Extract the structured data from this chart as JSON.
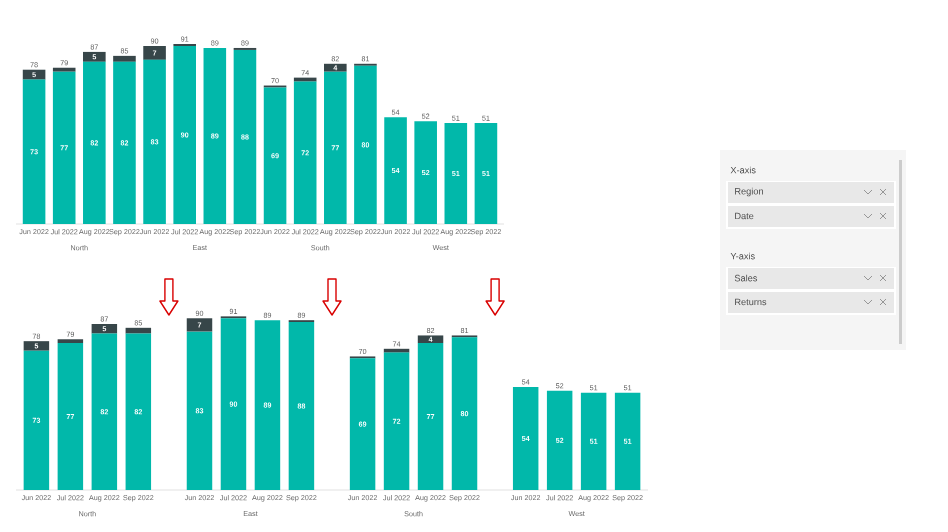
{
  "chart_data": [
    {
      "type": "bar",
      "stacked": true,
      "tick_labels": "x",
      "categories": [
        "Jun 2022",
        "Jul 2022",
        "Aug 2022",
        "Sep 2022",
        "Jun 2022",
        "Jul 2022",
        "Aug 2022",
        "Sep 2022",
        "Jun 2022",
        "Jul 2022",
        "Aug 2022",
        "Sep 2022",
        "Jun 2022",
        "Jul 2022",
        "Aug 2022",
        "Sep 2022"
      ],
      "series": [
        {
          "color": "#01b8aa",
          "values": [
            73,
            77,
            82,
            82,
            83,
            90,
            89,
            88,
            69,
            72,
            77,
            80,
            54,
            52,
            51,
            51
          ],
          "value_labels": [
            "73",
            "77",
            "82",
            "82",
            "83",
            "90",
            "89",
            "88",
            "69",
            "72",
            "77",
            "80",
            "54",
            "52",
            "51",
            "51"
          ]
        },
        {
          "color": "#374649",
          "values": [
            5,
            2,
            5,
            3,
            7,
            1,
            0,
            1,
            1,
            2,
            4,
            1,
            0,
            0,
            0,
            0
          ],
          "value_labels": [
            "5",
            null,
            "5",
            null,
            "7",
            null,
            null,
            null,
            null,
            null,
            "4",
            null,
            null,
            null,
            null,
            null
          ]
        }
      ],
      "totals": [
        "78",
        "79",
        "87",
        "85",
        "90",
        "91",
        "89",
        "89",
        "70",
        "74",
        "82",
        "81",
        "54",
        "52",
        "51",
        "51"
      ],
      "annotations": [
        "North",
        "East",
        "South",
        "West"
      ]
    },
    {
      "type": "bar",
      "stacked": true,
      "tick_labels": "x",
      "categories": [
        "Jun 2022",
        "Jul 2022",
        "Aug 2022",
        "Sep 2022",
        "Jun 2022",
        "Jul 2022",
        "Aug 2022",
        "Sep 2022",
        "Jun 2022",
        "Jul 2022",
        "Aug 2022",
        "Sep 2022",
        "Jun 2022",
        "Jul 2022",
        "Aug 2022",
        "Sep 2022"
      ],
      "series": [
        {
          "color": "#01b8aa",
          "values": [
            73,
            77,
            82,
            82,
            83,
            90,
            89,
            88,
            69,
            72,
            77,
            80,
            54,
            52,
            51,
            51
          ],
          "value_labels": [
            "73",
            "77",
            "82",
            "82",
            "83",
            "90",
            "89",
            "88",
            "69",
            "72",
            "77",
            "80",
            "54",
            "52",
            "51",
            "51"
          ]
        },
        {
          "color": "#374649",
          "values": [
            5,
            2,
            5,
            3,
            7,
            1,
            0,
            1,
            1,
            2,
            4,
            1,
            0,
            0,
            0,
            0
          ],
          "value_labels": [
            "5",
            null,
            "5",
            null,
            "7",
            null,
            null,
            null,
            null,
            null,
            "4",
            null,
            null,
            null,
            null,
            null
          ]
        }
      ],
      "totals": [
        "78",
        "79",
        "87",
        "85",
        "90",
        "91",
        "89",
        "89",
        "70",
        "74",
        "82",
        "81",
        "54",
        "52",
        "51",
        "51"
      ],
      "annotations": [
        "North",
        "East",
        "South",
        "West"
      ]
    },
    {
      "type": "other",
      "annotations": [
        "X-axis",
        "Region",
        "Date",
        "Y-axis",
        "Sales",
        "Returns"
      ]
    }
  ]
}
